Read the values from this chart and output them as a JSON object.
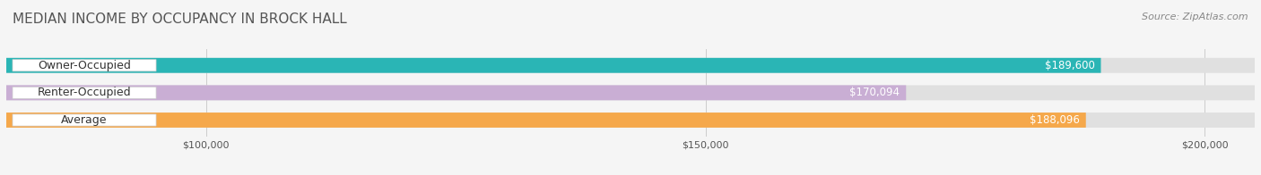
{
  "title": "MEDIAN INCOME BY OCCUPANCY IN BROCK HALL",
  "source": "Source: ZipAtlas.com",
  "categories": [
    "Owner-Occupied",
    "Renter-Occupied",
    "Average"
  ],
  "values": [
    189600,
    170094,
    188096
  ],
  "bar_colors": [
    "#2ab5b5",
    "#c9aed4",
    "#f5a84b"
  ],
  "bar_light_colors": [
    "#7dd8d8",
    "#dcc8e8",
    "#f8c880"
  ],
  "value_labels": [
    "$189,600",
    "$170,094",
    "$188,096"
  ],
  "xlim": [
    80000,
    205000
  ],
  "xticks": [
    100000,
    150000,
    200000
  ],
  "xtick_labels": [
    "$100,000",
    "$150,000",
    "$200,000"
  ],
  "background_color": "#f5f5f5",
  "bar_background_color": "#e8e8e8",
  "title_fontsize": 11,
  "source_fontsize": 8,
  "label_fontsize": 9,
  "value_fontsize": 8.5,
  "tick_fontsize": 8
}
